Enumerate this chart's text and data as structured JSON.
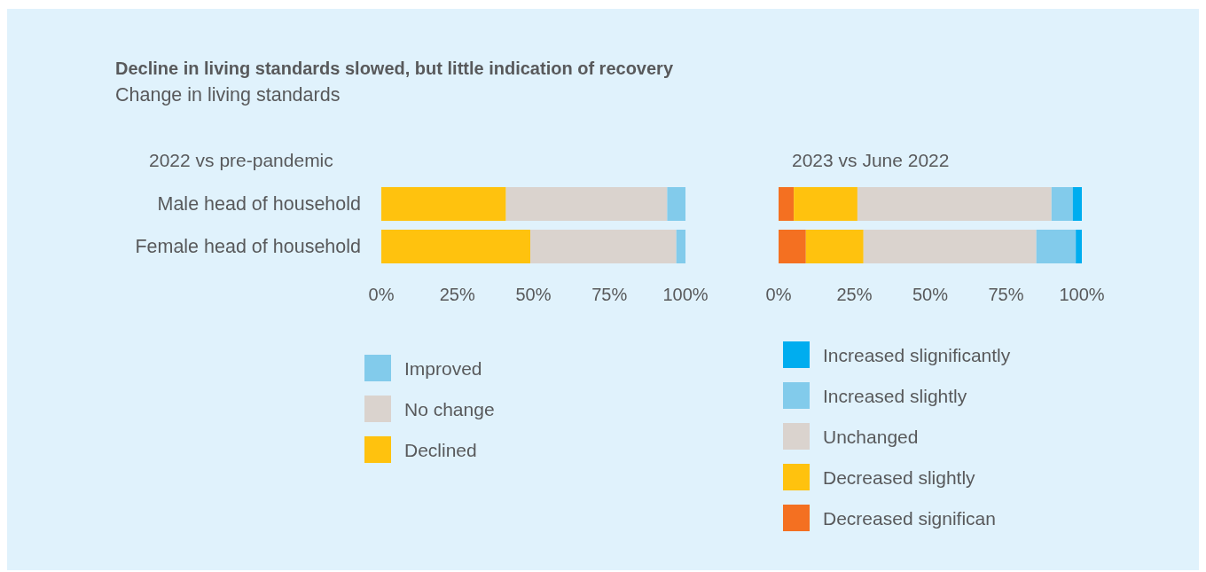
{
  "chart_data": [
    {
      "type": "other",
      "title": "Decline in living standards slowed, but little indication of recovery",
      "subtitle": "Change in living standards"
    },
    {
      "type": "bar",
      "title": "2022 vs pre-pandemic",
      "orientation": "horizontal",
      "stacked": true,
      "categories": [
        "Male head of household",
        "Female head of household"
      ],
      "series": [
        {
          "name": "Declined",
          "color": "#ffc20e",
          "values": [
            41,
            49
          ]
        },
        {
          "name": "No change",
          "color": "#dad3ce",
          "values": [
            53,
            48
          ]
        },
        {
          "name": "Improved",
          "color": "#82cbeb",
          "values": [
            6,
            3
          ]
        }
      ],
      "xlim": [
        0,
        100
      ],
      "xticks": [
        {
          "value": 0,
          "label": "0%"
        },
        {
          "value": 25,
          "label": "25%"
        },
        {
          "value": 50,
          "label": "50%"
        },
        {
          "value": 75,
          "label": "75%"
        },
        {
          "value": 100,
          "label": "100%"
        }
      ],
      "legend": "bottom left"
    },
    {
      "type": "bar",
      "title": "2023 vs June 2022",
      "orientation": "horizontal",
      "stacked": true,
      "categories": [
        null,
        null
      ],
      "series": [
        {
          "name": "Decreased significan",
          "color": "#f47021",
          "values": [
            5,
            9
          ]
        },
        {
          "name": "Decreased slightly",
          "color": "#ffc20e",
          "values": [
            21,
            19
          ]
        },
        {
          "name": "Unchanged",
          "color": "#dad3ce",
          "values": [
            64,
            57
          ]
        },
        {
          "name": "Increased slightly",
          "color": "#82cbeb",
          "values": [
            7,
            13
          ]
        },
        {
          "name": "Increased slignificantly",
          "color": "#00adef",
          "values": [
            3,
            2
          ]
        }
      ],
      "xlim": [
        0,
        100
      ],
      "xticks": [
        {
          "value": 0,
          "label": "0%"
        },
        {
          "value": 25,
          "label": "25%"
        },
        {
          "value": 50,
          "label": "50%"
        },
        {
          "value": 75,
          "label": "75%"
        },
        {
          "value": 100,
          "label": "100%"
        }
      ],
      "tick_labels": "x",
      "legend": "bottom left"
    }
  ]
}
